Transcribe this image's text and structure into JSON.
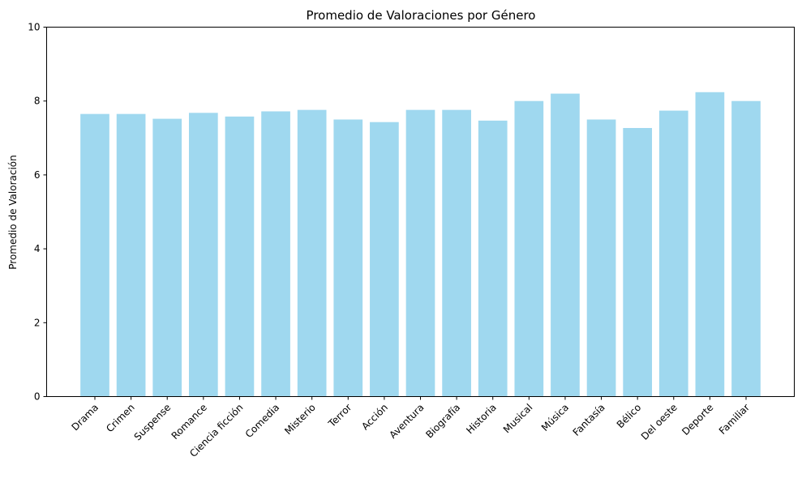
{
  "chart_data": {
    "type": "bar",
    "title": "Promedio de Valoraciones por Género",
    "xlabel": "",
    "ylabel": "Promedio de Valoración",
    "ylim": [
      0,
      10
    ],
    "yticks": [
      0,
      2,
      4,
      6,
      8,
      10
    ],
    "grid": false,
    "bar_color": "#87ceeb",
    "categories": [
      "Drama",
      "Crimen",
      "Suspense",
      "Romance",
      "Ciencia ficción",
      "Comedia",
      "Misterio",
      "Terror",
      "Acción",
      "Aventura",
      "Biografía",
      "Historia",
      "Musical",
      "Música",
      "Fantasía",
      "Bélico",
      "Del oeste",
      "Deporte",
      "Familiar"
    ],
    "values": [
      7.65,
      7.65,
      7.52,
      7.68,
      7.58,
      7.72,
      7.76,
      7.5,
      7.43,
      7.76,
      7.76,
      7.47,
      8.0,
      8.2,
      7.5,
      7.27,
      7.74,
      8.24,
      8.0
    ]
  }
}
